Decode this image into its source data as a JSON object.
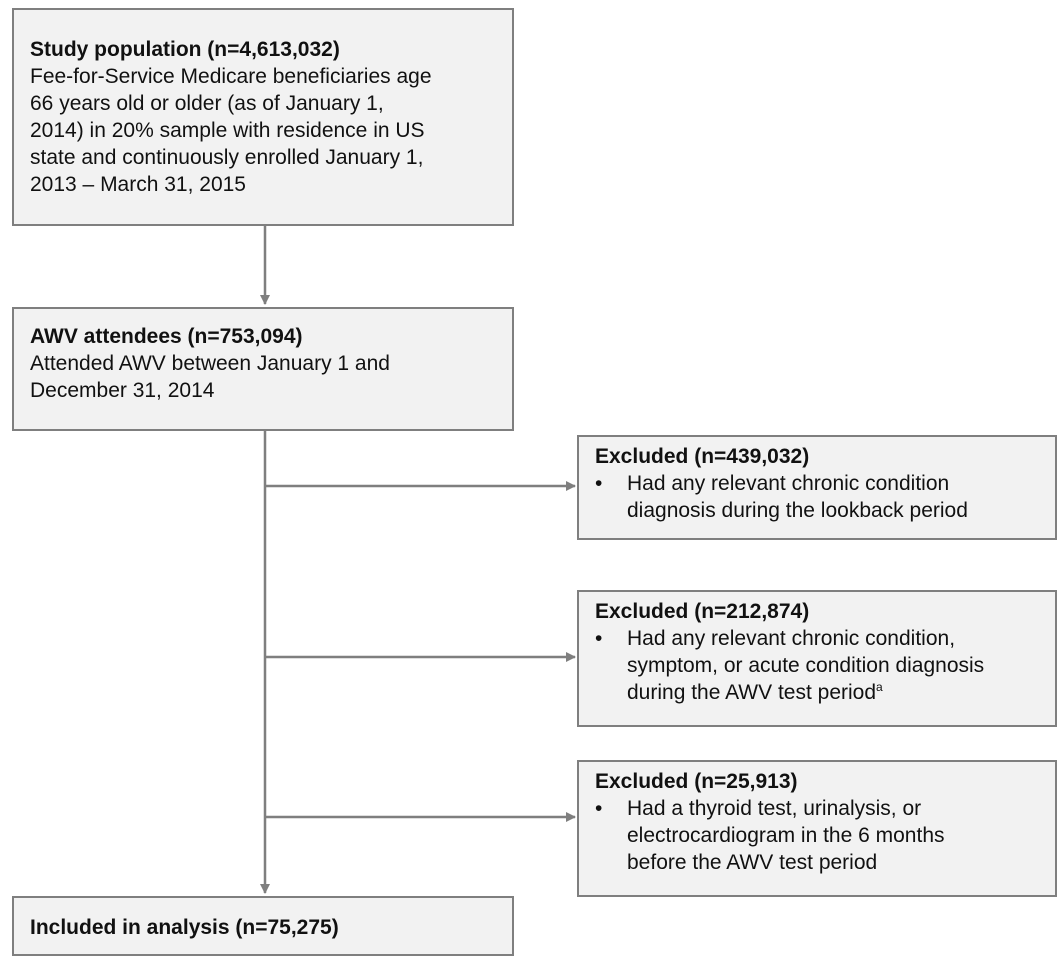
{
  "population": {
    "title": "Study population (n=4,613,032)",
    "body": "Fee-for-Service Medicare beneficiaries age\n66 years old or older (as of January 1,\n2014) in 20% sample with residence in US\nstate and continuously enrolled January 1,\n2013 – March 31, 2015"
  },
  "attendees": {
    "title": "AWV attendees (n=753,094)",
    "body": "Attended AWV between January 1 and\nDecember 31, 2014"
  },
  "exclusions": [
    {
      "title": "Excluded (n=439,032)",
      "bullet": "•",
      "text": "Had any relevant chronic condition\ndiagnosis during the lookback period"
    },
    {
      "title": "Excluded (n=212,874)",
      "bullet": "•",
      "text": "Had any relevant chronic condition,\nsymptom, or acute condition diagnosis\nduring the AWV test period",
      "footnote_mark": "a"
    },
    {
      "title": "Excluded (n=25,913)",
      "bullet": "•",
      "text": "Had a thyroid test, urinalysis, or\nelectrocardiogram in the 6 months\nbefore the AWV test period"
    }
  ],
  "included": {
    "title": "Included in analysis (n=75,275)"
  },
  "colors": {
    "box_fill": "#f2f2f2",
    "box_border": "#7f7f7f",
    "connector": "#7f7f7f"
  }
}
